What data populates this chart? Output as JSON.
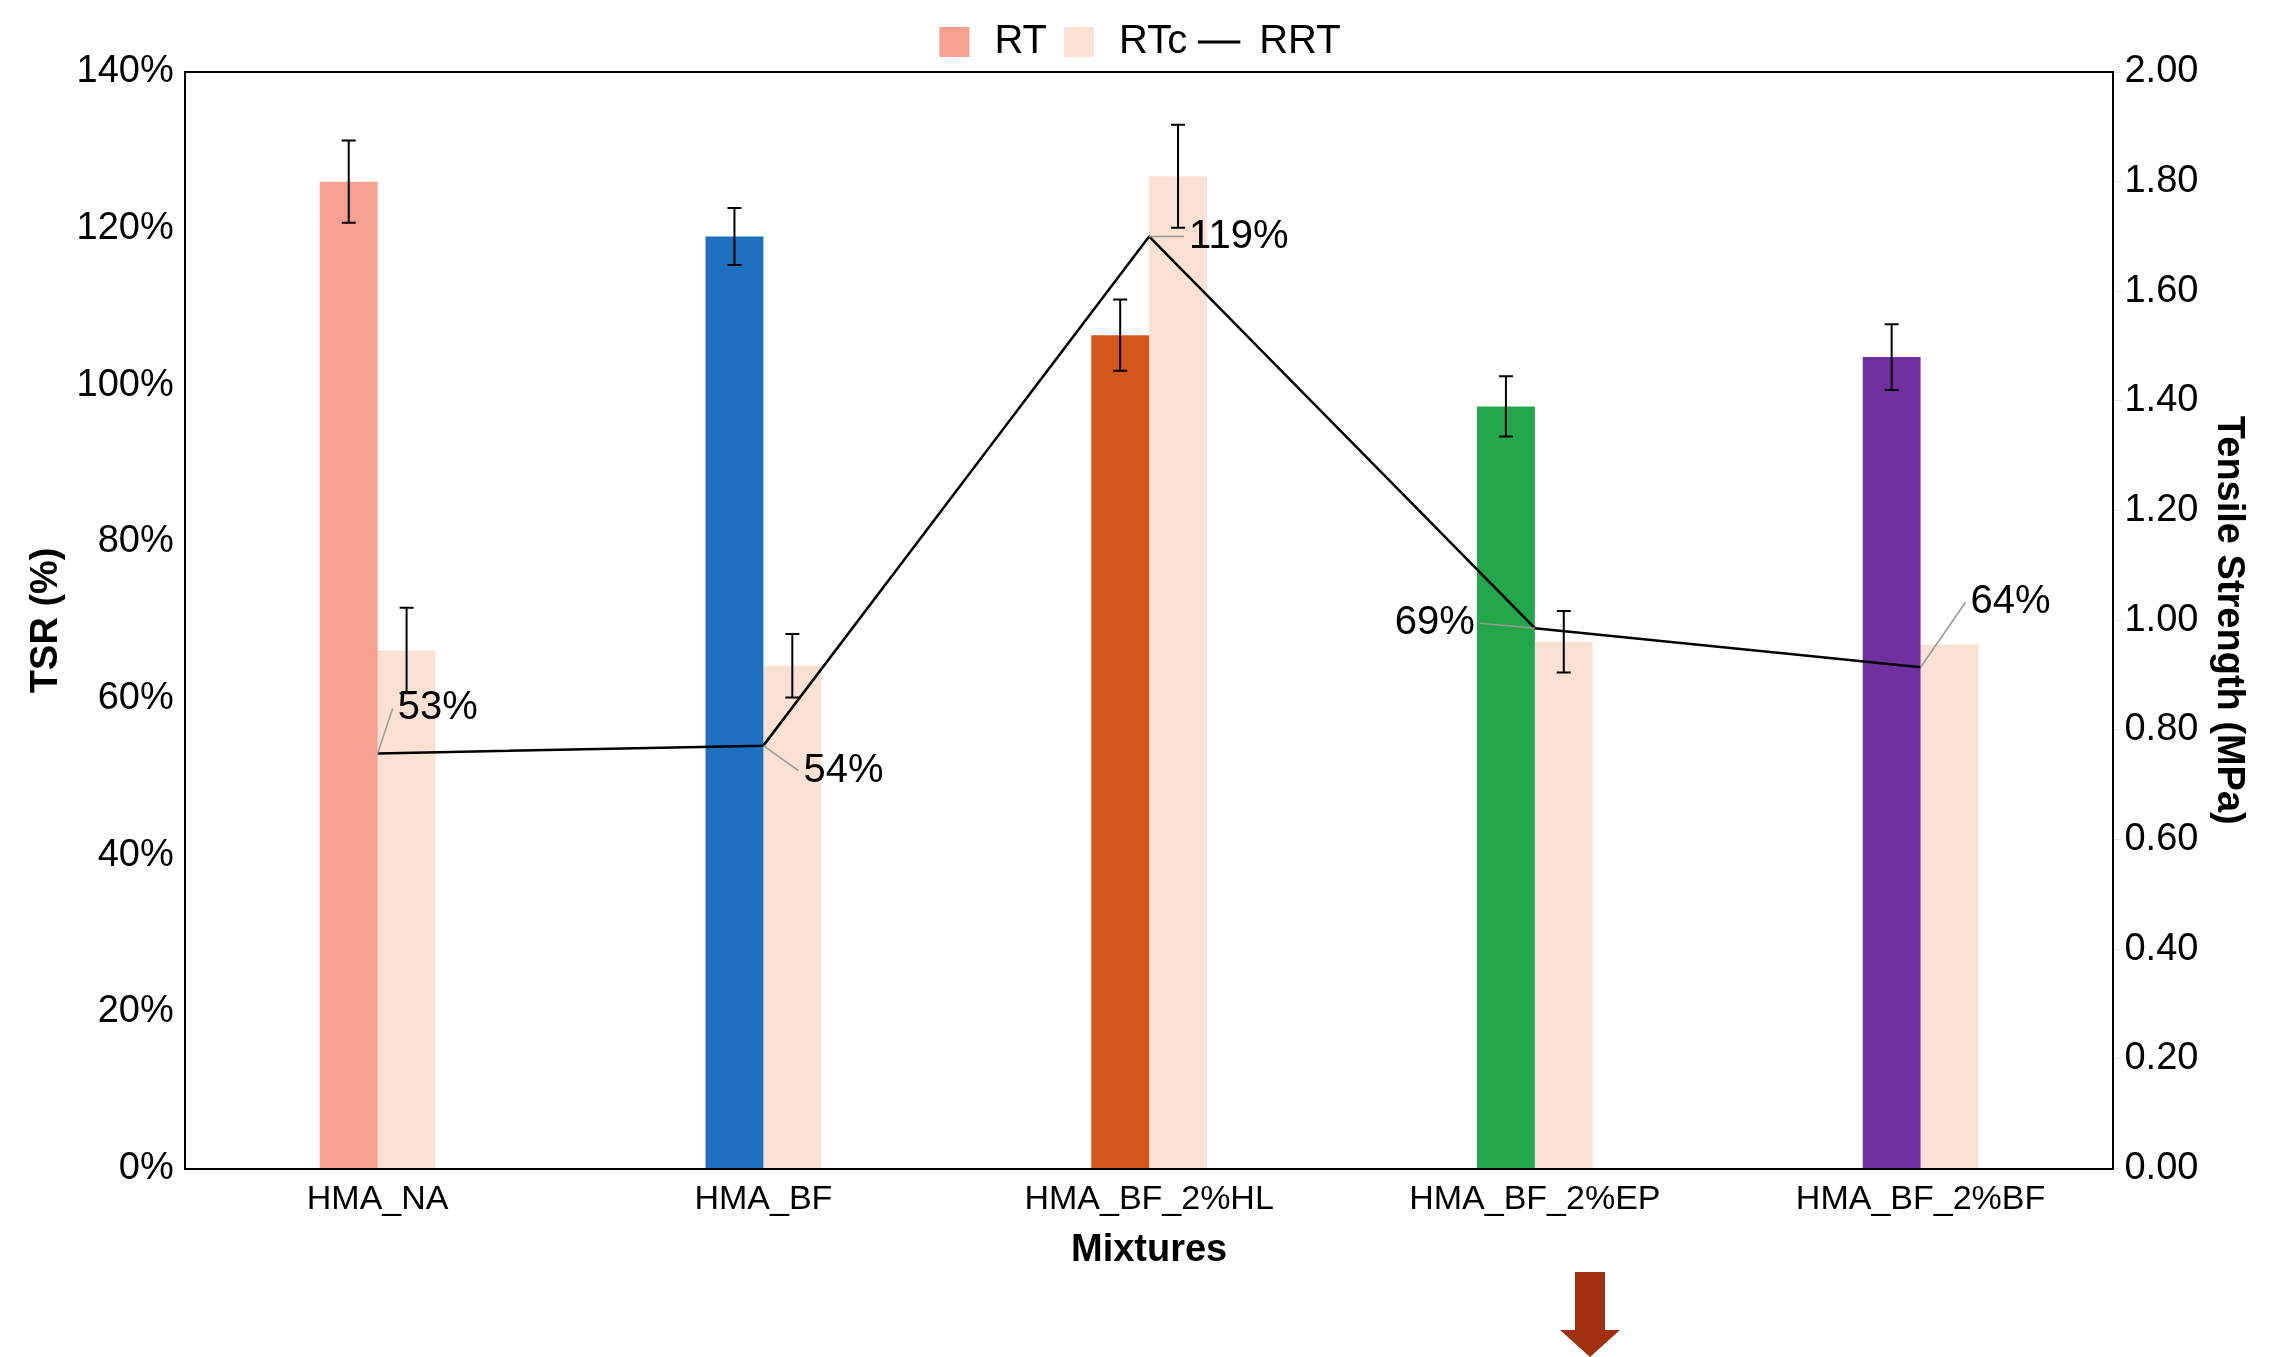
{
  "chart_data": {
    "type": "bar",
    "xlabel": "Mixtures",
    "ylabel": "TSR (%)",
    "y2label": "Tensile Strength (MPa)",
    "categories": [
      "HMA_NA",
      "HMA_BF",
      "HMA_BF_2%HL",
      "HMA_BF_2%EP",
      "HMA_BF_2%BF"
    ],
    "series": [
      {
        "name": "RT",
        "axis": "y2",
        "color": "#f4a08f",
        "colors": [
          "#f4a08f",
          "#1f6fc0",
          "#d4561a",
          "#22a84a",
          "#7030a0"
        ],
        "values": [
          1.8,
          1.7,
          1.52,
          1.39,
          1.48
        ],
        "errors": [
          0.075,
          0.052,
          0.065,
          0.055,
          0.06
        ]
      },
      {
        "name": "RTc",
        "axis": "y2",
        "color": "#fbe0d4",
        "values": [
          0.945,
          0.917,
          1.81,
          0.961,
          0.956
        ],
        "errors": [
          0.078,
          0.058,
          0.094,
          0.056,
          null
        ]
      },
      {
        "name": "RRT",
        "type": "line",
        "axis": "y",
        "color": "#000000",
        "values": [
          53,
          54,
          119,
          69,
          64
        ],
        "value_labels": [
          "53%",
          "54%",
          "119%",
          "69%",
          "64%"
        ]
      }
    ],
    "ylim": [
      0,
      140
    ],
    "yticks": [
      {
        "value": 0,
        "label": "0%"
      },
      {
        "value": 20,
        "label": "20%"
      },
      {
        "value": 40,
        "label": "40%"
      },
      {
        "value": 60,
        "label": "60%"
      },
      {
        "value": 80,
        "label": "80%"
      },
      {
        "value": 100,
        "label": "100%"
      },
      {
        "value": 120,
        "label": "120%"
      },
      {
        "value": 140,
        "label": "140%"
      }
    ],
    "y2lim": [
      0,
      2
    ],
    "y2ticks": [
      {
        "value": 0,
        "label": "0.00"
      },
      {
        "value": 0.2,
        "label": "0.20"
      },
      {
        "value": 0.4,
        "label": "0.40"
      },
      {
        "value": 0.6,
        "label": "0.60"
      },
      {
        "value": 0.8,
        "label": "0.80"
      },
      {
        "value": 1,
        "label": "1.00"
      },
      {
        "value": 1.2,
        "label": "1.20"
      },
      {
        "value": 1.4,
        "label": "1.40"
      },
      {
        "value": 1.6,
        "label": "1.60"
      },
      {
        "value": 1.8,
        "label": "1.80"
      },
      {
        "value": 2,
        "label": "2.00"
      }
    ],
    "grid": false,
    "legend": "top",
    "marker": "none",
    "line_style": "solid"
  }
}
